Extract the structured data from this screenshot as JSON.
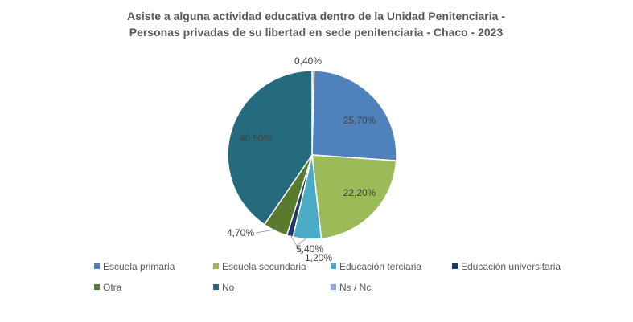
{
  "chart_data": {
    "type": "pie",
    "title": [
      "Asiste a alguna actividad educativa dentro de la Unidad Penitenciaria -",
      "Personas privadas de su libertad en sede penitenciaria - Chaco - 2023"
    ],
    "slices": [
      {
        "name": "Ns / Nc",
        "value": 0.4,
        "label": "0,40%",
        "color": "#8EA9DB"
      },
      {
        "name": "Escuela primaria",
        "value": 25.7,
        "label": "25,70%",
        "color": "#4F81BD"
      },
      {
        "name": "Escuela secundaria",
        "value": 22.2,
        "label": "22,20%",
        "color": "#9BBB59"
      },
      {
        "name": "Educación terciaria",
        "value": 5.4,
        "label": "5,40%",
        "color": "#4BACC6"
      },
      {
        "name": "Educación universitaria",
        "value": 1.2,
        "label": "1,20%",
        "color": "#1F3864"
      },
      {
        "name": "Otra",
        "value": 4.7,
        "label": "4,70%",
        "color": "#5A7A2E"
      },
      {
        "name": "No",
        "value": 40.5,
        "label": "40,50%",
        "color": "#256B7D"
      }
    ],
    "legend": {
      "placement": "bottom",
      "items": [
        "Escuela primaria",
        "Escuela secundaria",
        "Educación terciaria",
        "Educación universitaria",
        "Otra",
        "No",
        "Ns / Nc"
      ]
    }
  }
}
